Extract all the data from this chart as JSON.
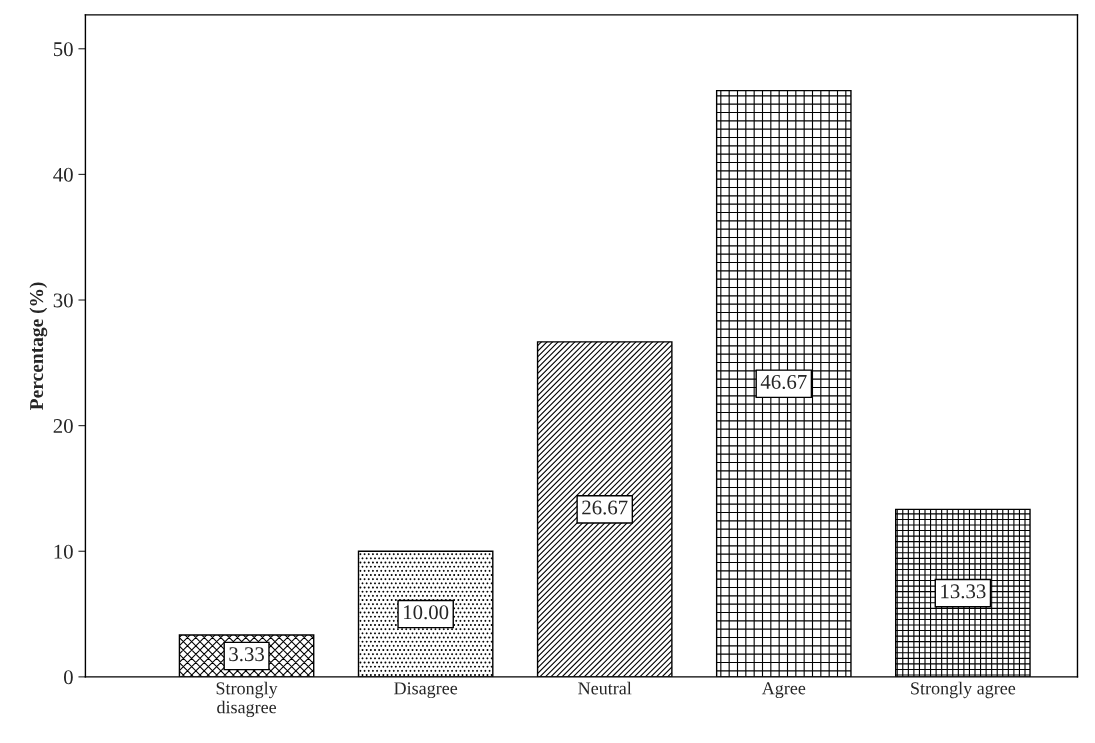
{
  "chart_data": {
    "type": "bar",
    "categories": [
      "Strongly\ndisagree",
      "Disagree",
      "Neutral",
      "Agree",
      "Strongly agree"
    ],
    "values": [
      3.33,
      10.0,
      26.67,
      46.67,
      13.33
    ],
    "value_labels": [
      "3.33",
      "10.00",
      "26.67",
      "46.67",
      "13.33"
    ],
    "colors": [
      "#000000",
      "#000000",
      "#000000",
      "#000000",
      "#000000"
    ],
    "ylabel": "Percentage (%)",
    "ylim": [
      0,
      52.7
    ],
    "yticks": [
      0,
      10,
      20,
      30,
      40,
      50
    ],
    "grid": false,
    "legend": false
  }
}
